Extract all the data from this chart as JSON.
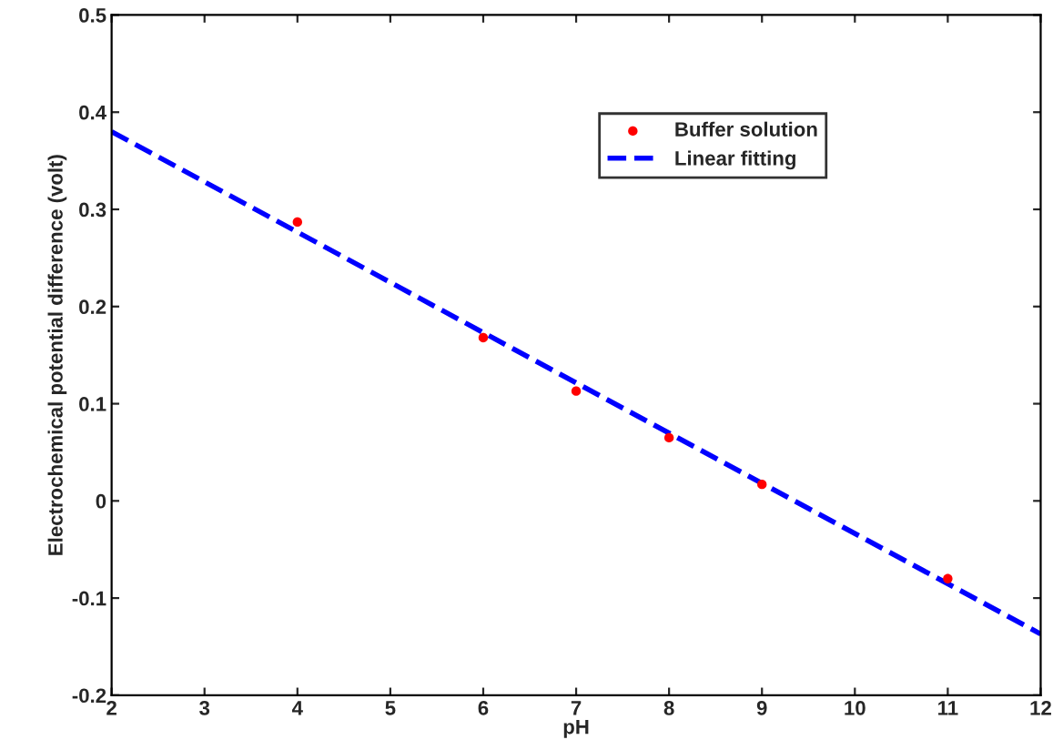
{
  "chart_data": {
    "type": "scatter",
    "xlabel": "pH",
    "ylabel": "Electrochemical potential difference (volt)",
    "xlim": [
      2,
      12
    ],
    "xticks": [
      2,
      3,
      4,
      5,
      6,
      7,
      8,
      9,
      10,
      11,
      12
    ],
    "ylim": [
      -0.2,
      0.5
    ],
    "yticks": [
      -0.2,
      -0.1,
      0,
      0.1,
      0.2,
      0.3,
      0.4,
      0.5
    ],
    "legend": "top right",
    "grid": false,
    "series": [
      {
        "name": "Buffer solution",
        "color": "#ff0000",
        "marker": "circle",
        "x": [
          4,
          6,
          7,
          8,
          9,
          11
        ],
        "values": [
          0.287,
          0.168,
          0.113,
          0.065,
          0.017,
          -0.08
        ]
      },
      {
        "name": "Linear fitting",
        "type": "line",
        "color": "#0000ff",
        "line_style": "dashed",
        "marker": "none",
        "x": [
          2,
          12
        ],
        "values": [
          0.38,
          -0.137
        ]
      }
    ]
  }
}
